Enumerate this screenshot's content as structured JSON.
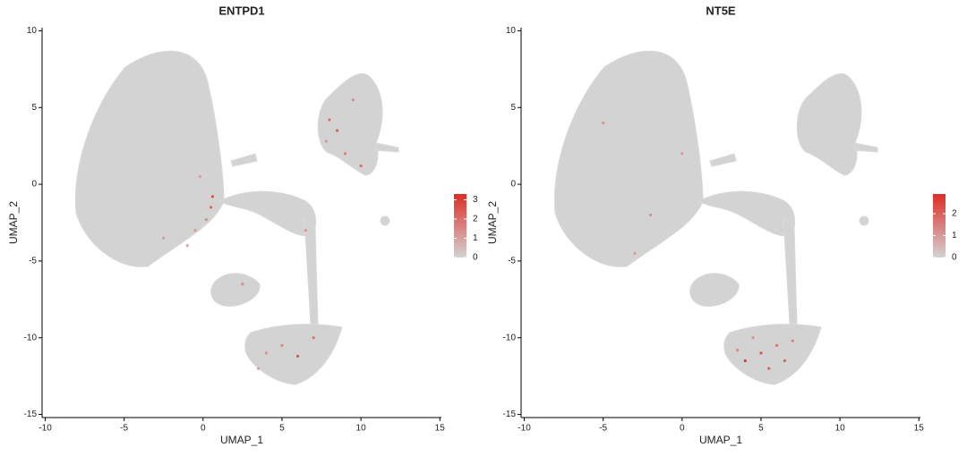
{
  "chart_data": [
    {
      "type": "scatter",
      "title": "ENTPD1",
      "x_label": "UMAP_1",
      "y_label": "UMAP_2",
      "xlim": [
        -10.2,
        15.1
      ],
      "ylim": [
        -15.2,
        10.2
      ],
      "xticks": [
        -10,
        -5,
        0,
        5,
        10,
        15
      ],
      "yticks": [
        -15,
        -10,
        -5,
        0,
        5,
        10
      ],
      "points": {
        "x": [
          0.5,
          0.2,
          -0.5,
          0.6,
          -1,
          -2.5,
          -0.2,
          8,
          8.5,
          9.5,
          7.8,
          10,
          9,
          5,
          6,
          4,
          7,
          3.5,
          2.5,
          6.5
        ],
        "y": [
          -1.5,
          -2.3,
          -3,
          -0.8,
          -4,
          -3.5,
          0.5,
          4.2,
          3.5,
          5.5,
          2.8,
          1.2,
          2,
          -10.5,
          -11.2,
          -11,
          -10,
          -12,
          -6.5,
          -3
        ],
        "values": [
          2.1,
          1.4,
          1.1,
          2.6,
          0.9,
          1.2,
          1.0,
          1.8,
          2.3,
          1.5,
          1.2,
          2.0,
          1.6,
          1.5,
          2.4,
          1.3,
          1.8,
          1.0,
          1.4,
          1.2
        ]
      },
      "colorbar": {
        "lim": [
          0,
          3.3
        ],
        "ticks": [
          0,
          1,
          2,
          3
        ],
        "colors": [
          "#d3d3d3",
          "#de2d26"
        ]
      }
    },
    {
      "type": "scatter",
      "title": "NT5E",
      "x_label": "UMAP_1",
      "y_label": "UMAP_2",
      "xlim": [
        -10.2,
        15.1
      ],
      "ylim": [
        -15.2,
        10.2
      ],
      "xticks": [
        -10,
        -5,
        0,
        5,
        10,
        15
      ],
      "yticks": [
        -15,
        -10,
        -5,
        0,
        5,
        10
      ],
      "points": {
        "x": [
          5,
          6,
          4,
          3.5,
          7,
          5.5,
          4.5,
          6.5,
          -3,
          -5,
          0,
          -2
        ],
        "y": [
          -11,
          -10.5,
          -11.5,
          -10.8,
          -10.2,
          -12,
          -10,
          -11.5,
          -4.5,
          4,
          2,
          -2
        ],
        "values": [
          2.2,
          1.6,
          2.7,
          1.2,
          1.4,
          1.9,
          1.1,
          2.0,
          1.0,
          1.1,
          0.9,
          1.2
        ]
      },
      "colorbar": {
        "lim": [
          0,
          2.9
        ],
        "ticks": [
          0,
          1,
          2
        ],
        "colors": [
          "#d3d3d3",
          "#de2d26"
        ]
      }
    }
  ]
}
